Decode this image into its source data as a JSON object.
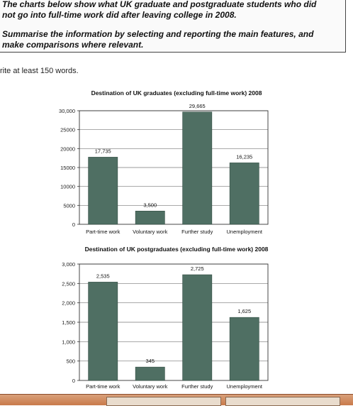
{
  "task": {
    "line1": "The charts below show what UK graduate and postgraduate students who did",
    "line2": "not go into full-time work did after leaving college in 2008.",
    "line3": "Summarise the information by selecting and reporting the main features, and",
    "line4": "make comparisons where relevant.",
    "write": "rite at least 150 words."
  },
  "chart_data": [
    {
      "type": "bar",
      "title": "Destination of UK graduates (excluding full-time work) 2008",
      "categories": [
        "Part-time work",
        "Voluntary work",
        "Further study",
        "Unemployment"
      ],
      "values": [
        17735,
        3500,
        29665,
        16235
      ],
      "value_labels": [
        "17,735",
        "3,500",
        "29,665",
        "16,235"
      ],
      "yticks": [
        0,
        5000,
        10000,
        15000,
        20000,
        25000,
        30000
      ],
      "ytick_labels": [
        "0",
        "5000",
        "10000",
        "15000",
        "20000",
        "25000",
        "30,000"
      ],
      "ylim": [
        0,
        30000
      ],
      "bar_color": "#4f6f63"
    },
    {
      "type": "bar",
      "title": "Destination of UK postgraduates (excluding full-time work) 2008",
      "categories": [
        "Part-time work",
        "Voluntary work",
        "Further study",
        "Unemployment"
      ],
      "values": [
        2535,
        345,
        2725,
        1625
      ],
      "value_labels": [
        "2,535",
        "345",
        "2,725",
        "1,625"
      ],
      "yticks": [
        0,
        500,
        1000,
        1500,
        2000,
        2500,
        3000
      ],
      "ytick_labels": [
        "0",
        "500",
        "1,000",
        "1,500",
        "2,000",
        "2,500",
        "3,000"
      ],
      "ylim": [
        0,
        3000
      ],
      "bar_color": "#4f6f63"
    }
  ]
}
